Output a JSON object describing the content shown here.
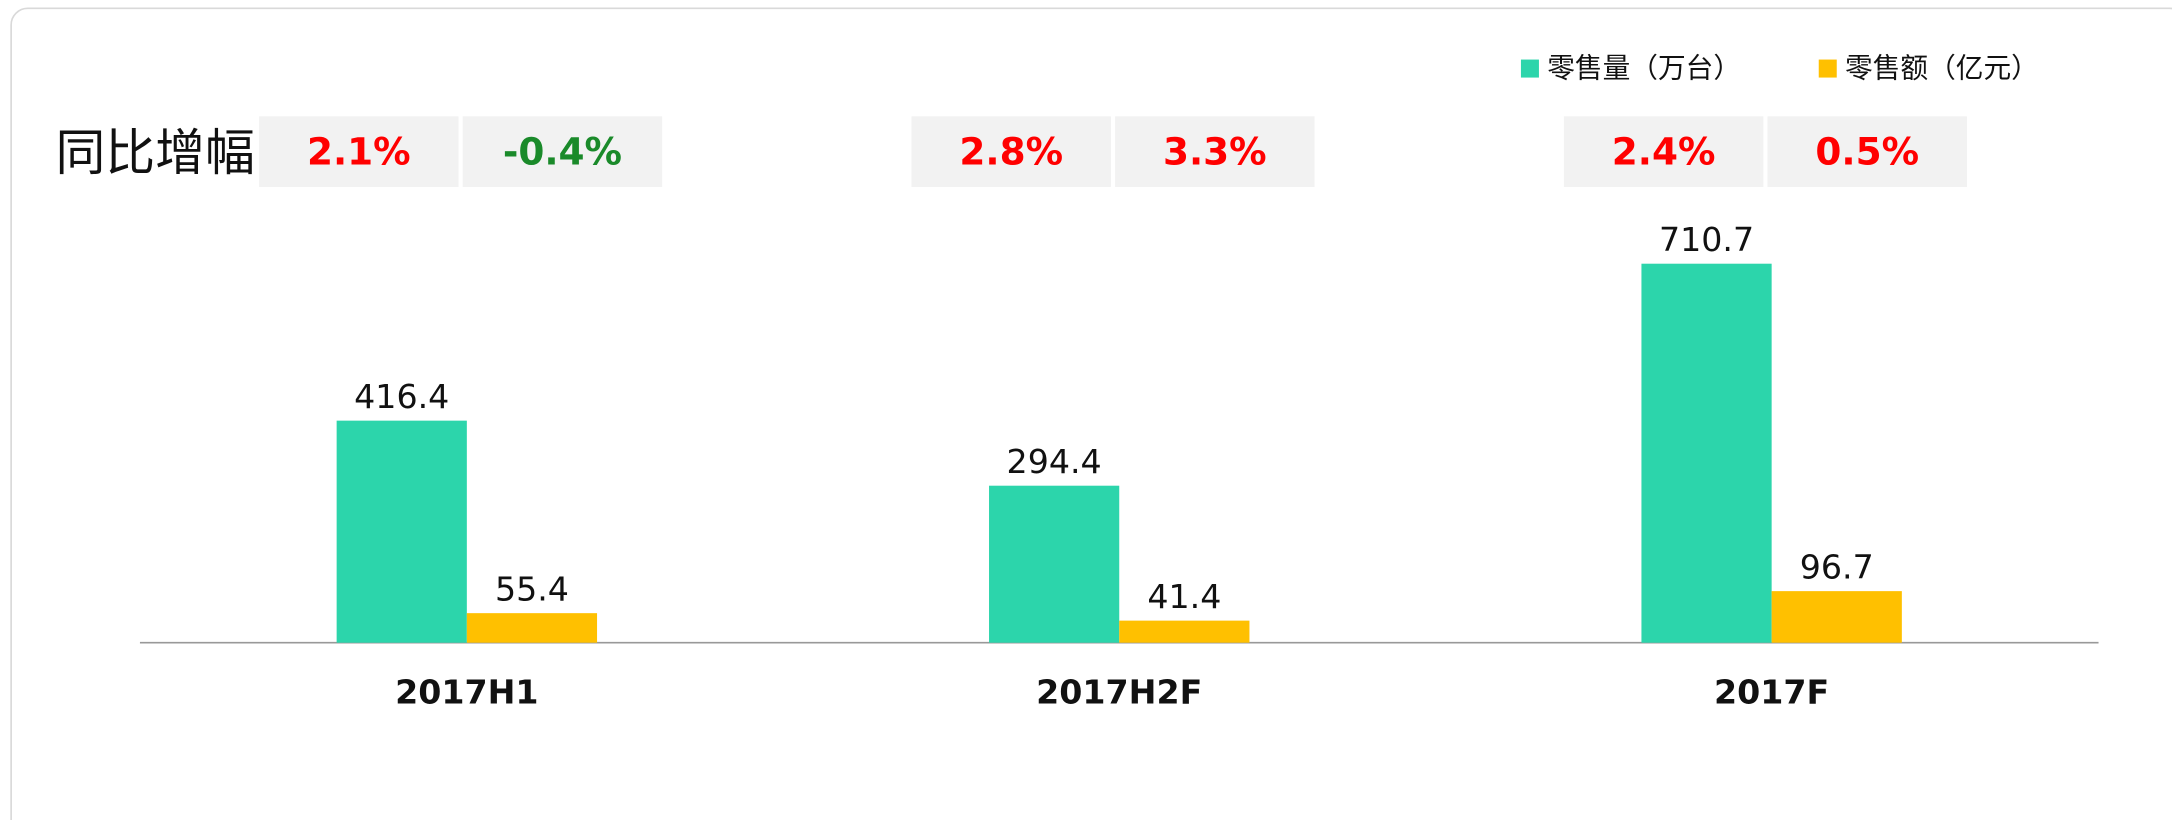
{
  "chart_data": {
    "type": "bar",
    "categories": [
      "2017H1",
      "2017H2F",
      "2017F"
    ],
    "series": [
      {
        "name": "零售量（万台）",
        "color": "#2cd5ab",
        "values": [
          416.4,
          294.4,
          710.7
        ]
      },
      {
        "name": "零售额（亿元）",
        "color": "#ffc000",
        "values": [
          55.4,
          41.4,
          96.7
        ]
      }
    ],
    "ylim": [
      0,
      800
    ],
    "legend": "top-right",
    "growth": {
      "title": "同比增幅",
      "positive_color": "#ff0000",
      "negative_color": "#1a8a2a",
      "series": [
        {
          "values": [
            2.1,
            2.8,
            2.4
          ],
          "value_labels": [
            "2.1%",
            "2.8%",
            "2.4%"
          ]
        },
        {
          "values": [
            -0.4,
            3.3,
            0.5
          ],
          "value_labels": [
            "-0.4%",
            "3.3%",
            "0.5%"
          ]
        }
      ]
    }
  }
}
